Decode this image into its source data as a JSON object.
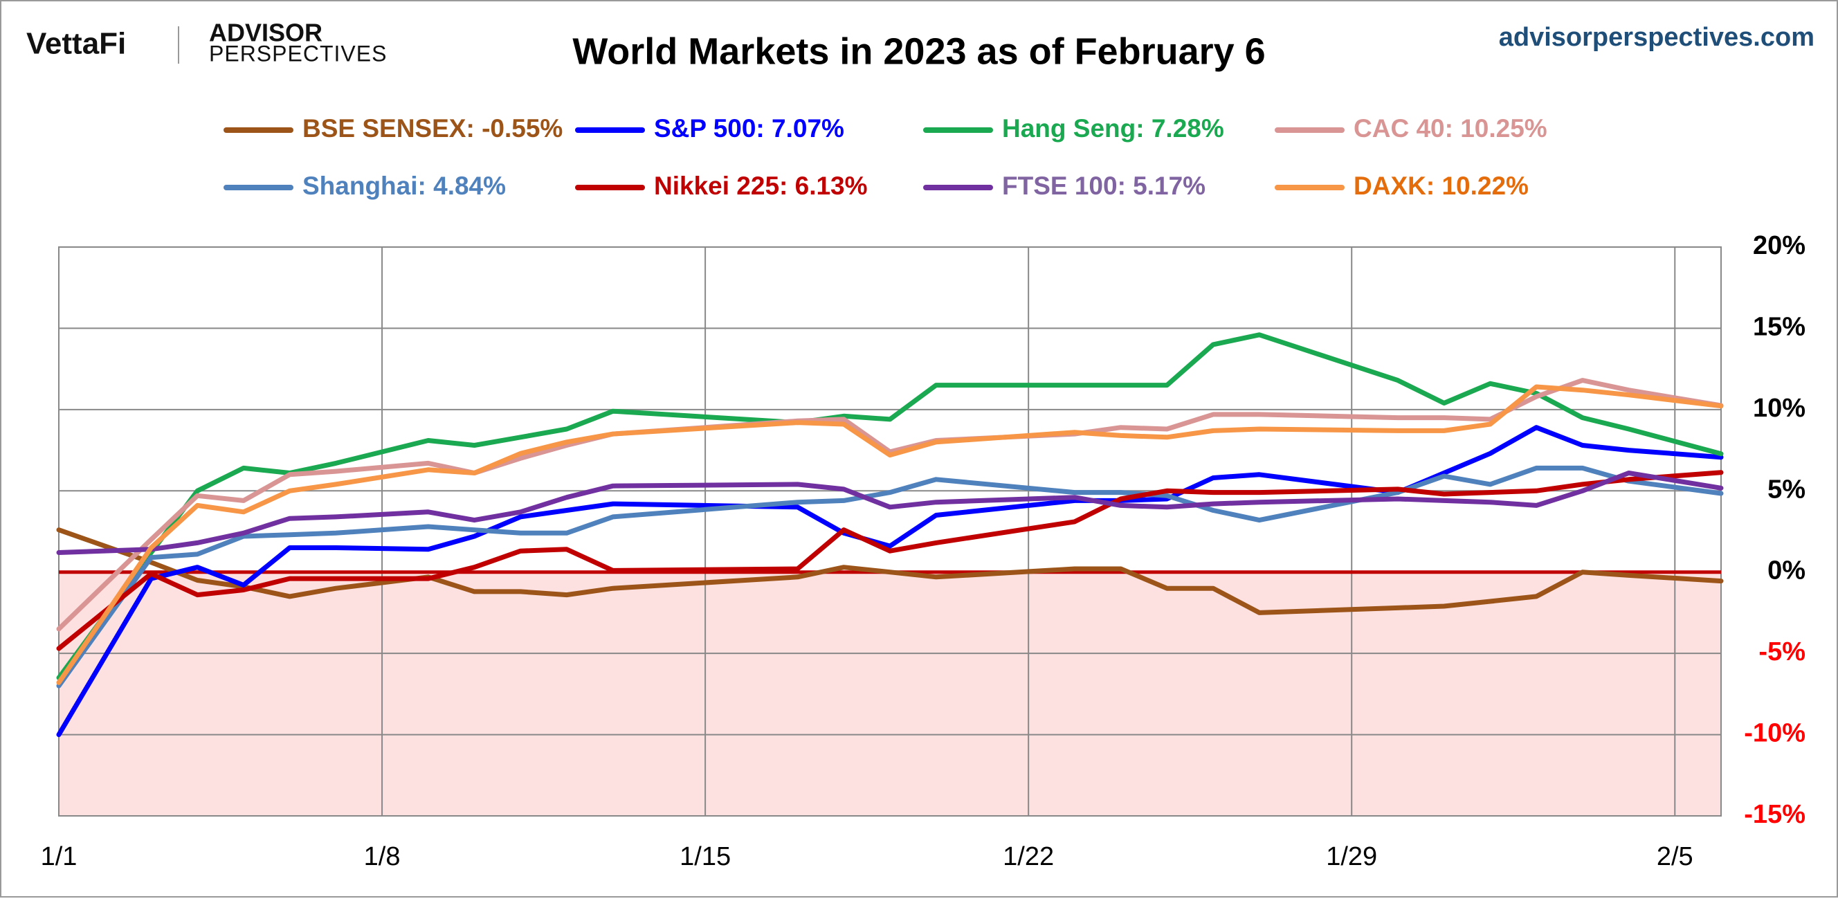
{
  "header": {
    "brand": "VettaFi",
    "logo_top": "ADVISOR",
    "logo_bottom": "PERSPECTIVES",
    "site": "advisorperspectives.com"
  },
  "chart_data": {
    "type": "line",
    "title": "World Markets in 2023 as of February 6",
    "x": [
      1,
      3,
      4,
      5,
      6,
      7,
      9,
      10,
      11,
      12,
      13,
      17,
      18,
      19,
      20,
      23,
      24,
      25,
      26,
      27,
      30,
      31,
      32,
      33,
      34,
      35,
      37
    ],
    "xlim": [
      1,
      37
    ],
    "xticks": [
      {
        "value": 1,
        "label": "1/1"
      },
      {
        "value": 8,
        "label": "1/8"
      },
      {
        "value": 15,
        "label": "1/15"
      },
      {
        "value": 22,
        "label": "1/22"
      },
      {
        "value": 29,
        "label": "1/29"
      },
      {
        "value": 36,
        "label": "2/5"
      }
    ],
    "ylim": [
      -15,
      20
    ],
    "yticks": [
      {
        "value": -15,
        "label": "-15%"
      },
      {
        "value": -10,
        "label": "-10%"
      },
      {
        "value": -5,
        "label": "-5%"
      },
      {
        "value": 0,
        "label": "0%"
      },
      {
        "value": 5,
        "label": "5%"
      },
      {
        "value": 10,
        "label": "10%"
      },
      {
        "value": 15,
        "label": "15%"
      },
      {
        "value": 20,
        "label": "20%"
      }
    ],
    "grid": true,
    "negative_fill": "#fde0e0",
    "negative_tick_color": "#ff0000",
    "zero_line_color": "#c00000",
    "series": [
      {
        "name": "BSE SENSEX: -0.55%",
        "color": "#9c5418",
        "label_color": "#9c5418",
        "values": [
          2.6,
          0.6,
          -0.5,
          -0.9,
          -1.5,
          -1.0,
          -0.3,
          -1.2,
          -1.2,
          -1.4,
          -1.0,
          -0.3,
          0.3,
          0.0,
          -0.3,
          0.2,
          0.2,
          -1.0,
          -1.0,
          -2.5,
          -2.2,
          -2.1,
          -1.8,
          -1.5,
          0.0,
          -0.2,
          -0.55
        ]
      },
      {
        "name": "S&P 500: 7.07%",
        "color": "#0000ff",
        "label_color": "#0000ff",
        "values": [
          -10,
          -0.4,
          0.3,
          -0.8,
          1.5,
          1.5,
          1.4,
          2.2,
          3.4,
          3.8,
          4.2,
          4.0,
          2.4,
          1.6,
          3.5,
          4.4,
          4.4,
          4.5,
          5.8,
          6.0,
          4.9,
          6.1,
          7.3,
          8.9,
          7.8,
          7.5,
          7.07
        ]
      },
      {
        "name": "Hang Seng: 7.28%",
        "color": "#1aa850",
        "label_color": "#1aa850",
        "values": [
          -6.5,
          1.2,
          5.0,
          6.4,
          6.1,
          6.7,
          8.1,
          7.8,
          8.3,
          8.8,
          9.9,
          9.2,
          9.6,
          9.4,
          11.5,
          11.5,
          11.5,
          11.5,
          14.0,
          14.6,
          11.8,
          10.4,
          11.6,
          11.0,
          9.5,
          8.8,
          7.28
        ]
      },
      {
        "name": "CAC 40: 10.25%",
        "color": "#d99594",
        "label_color": "#d99594",
        "values": [
          -3.5,
          2.0,
          4.7,
          4.4,
          6.0,
          6.2,
          6.7,
          6.1,
          7.0,
          7.8,
          8.5,
          9.3,
          9.4,
          7.4,
          8.1,
          8.5,
          8.9,
          8.8,
          9.7,
          9.7,
          9.5,
          9.5,
          9.4,
          10.8,
          11.8,
          11.2,
          10.25
        ]
      },
      {
        "name": "Shanghai: 4.84%",
        "color": "#4f81bd",
        "label_color": "#4f81bd",
        "values": [
          -7.0,
          0.9,
          1.1,
          2.2,
          2.3,
          2.4,
          2.8,
          2.6,
          2.4,
          2.4,
          3.4,
          4.3,
          4.4,
          4.9,
          5.7,
          4.9,
          4.9,
          4.7,
          3.8,
          3.2,
          4.9,
          5.9,
          5.4,
          6.4,
          6.4,
          5.6,
          4.84
        ]
      },
      {
        "name": "Nikkei 225: 6.13%",
        "color": "#c00000",
        "label_color": "#c00000",
        "values": [
          -4.7,
          -0.1,
          -1.4,
          -1.1,
          -0.4,
          -0.4,
          -0.4,
          0.3,
          1.3,
          1.4,
          0.1,
          0.2,
          2.6,
          1.3,
          1.8,
          3.1,
          4.5,
          5.0,
          4.9,
          4.9,
          5.1,
          4.8,
          4.9,
          5.0,
          5.4,
          5.7,
          6.13
        ]
      },
      {
        "name": "FTSE 100: 5.17%",
        "color": "#7030a0",
        "label_color": "#8064a2",
        "values": [
          1.2,
          1.4,
          1.8,
          2.4,
          3.3,
          3.4,
          3.7,
          3.2,
          3.7,
          4.6,
          5.3,
          5.4,
          5.1,
          4.0,
          4.3,
          4.6,
          4.1,
          4.0,
          4.2,
          4.3,
          4.5,
          4.4,
          4.3,
          4.1,
          5.0,
          6.1,
          5.17
        ]
      },
      {
        "name": "DAXK: 10.22%",
        "color": "#f79646",
        "label_color": "#e46c0a",
        "values": [
          -6.8,
          1.5,
          4.1,
          3.7,
          5.0,
          5.4,
          6.3,
          6.1,
          7.3,
          8.0,
          8.5,
          9.2,
          9.1,
          7.2,
          8.0,
          8.6,
          8.4,
          8.3,
          8.7,
          8.8,
          8.7,
          8.7,
          9.1,
          11.4,
          11.2,
          10.9,
          10.22
        ]
      }
    ]
  }
}
